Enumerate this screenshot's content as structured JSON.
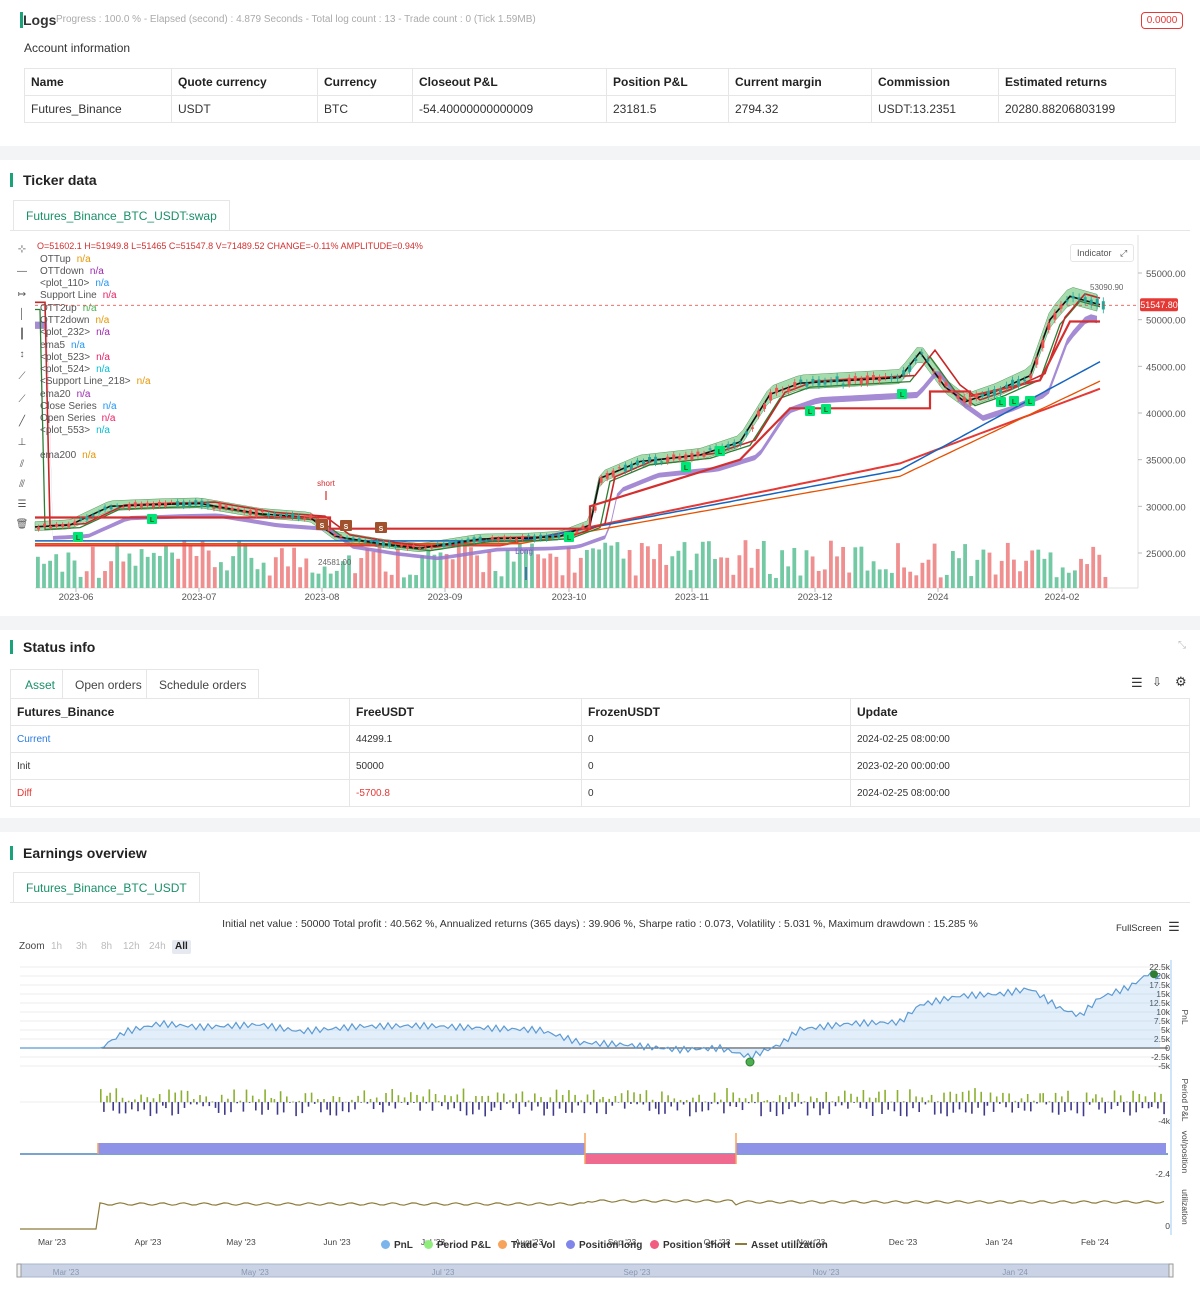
{
  "logs": {
    "title": "Logs",
    "status": "Progress : 100.0 % - Elapsed (second) : 4.879  Seconds - Total log count : 13 - Trade count : 0 (Tick 1.59MB)",
    "badge": "0.0000"
  },
  "account": {
    "title": "Account information",
    "headers": [
      "Name",
      "Quote currency",
      "Currency",
      "Closeout P&L",
      "Position P&L",
      "Current margin",
      "Commission",
      "Estimated returns"
    ],
    "row": [
      "Futures_Binance",
      "USDT",
      "BTC",
      "-54.40000000000009",
      "23181.5",
      "2794.32",
      "USDT:13.2351",
      "20280.88206803199"
    ]
  },
  "ticker": {
    "title": "Ticker data",
    "tab": "Futures_Binance_BTC_USDT:swap",
    "ohlc": "O=51602.1 H=51949.8 L=51465 C=51547.8 V=71489.52 CHANGE=-0.11% AMPLITUDE=0.94%",
    "indicator_btn": "Indicator",
    "legend": [
      {
        "name": "OTTup",
        "val": "n/a",
        "color": "#e69500"
      },
      {
        "name": "OTTdown",
        "val": "n/a",
        "color": "#9c27b0"
      },
      {
        "name": "<plot_110>",
        "val": "n/a",
        "color": "#2196f3"
      },
      {
        "name": "Support Line",
        "val": "n/a",
        "color": "#e91e63"
      },
      {
        "name": "OTT2up",
        "val": "n/a",
        "color": "#4caf50"
      },
      {
        "name": "OTT2down",
        "val": "n/a",
        "color": "#e69500"
      },
      {
        "name": "<plot_232>",
        "val": "n/a",
        "color": "#9c27b0"
      },
      {
        "name": "ema5",
        "val": "n/a",
        "color": "#2196f3"
      },
      {
        "name": "<plot_523>",
        "val": "n/a",
        "color": "#e91e63"
      },
      {
        "name": "<plot_524>",
        "val": "n/a",
        "color": "#00bcd4"
      },
      {
        "name": "<Support Line_218>",
        "val": "n/a",
        "color": "#e69500"
      },
      {
        "name": "ema20",
        "val": "n/a",
        "color": "#9c27b0"
      },
      {
        "name": "Close Series",
        "val": "n/a",
        "color": "#2196f3"
      },
      {
        "name": "Open Series",
        "val": "n/a",
        "color": "#e91e63"
      },
      {
        "name": "<plot_553>",
        "val": "n/a",
        "color": "#00bcd4"
      },
      {
        "name": "ema200",
        "val": "n/a",
        "color": "#e69500"
      }
    ],
    "price_ticks": [
      "55000.00",
      "50000.00",
      "45000.00",
      "40000.00",
      "35000.00",
      "30000.00",
      "25000.00"
    ],
    "date_ticks": [
      "2023-06",
      "2023-07",
      "2023-08",
      "2023-09",
      "2023-10",
      "2023-11",
      "2023-12",
      "2024",
      "2024-02"
    ],
    "last_price": "51547.80",
    "high_label": "53090.90",
    "low_label": "24581.00",
    "short_label": "short",
    "long_label": "Long"
  },
  "status": {
    "title": "Status info",
    "tabs": [
      "Asset",
      "Open orders",
      "Schedule orders"
    ],
    "headers": [
      "Futures_Binance",
      "FreeUSDT",
      "FrozenUSDT",
      "Update"
    ],
    "rows": [
      {
        "label": "Current",
        "free": "44299.1",
        "frozen": "0",
        "update": "2024-02-25 08:00:00"
      },
      {
        "label": "Init",
        "free": "50000",
        "frozen": "0",
        "update": "2023-02-20 00:00:00"
      },
      {
        "label": "Diff",
        "free": "-5700.8",
        "frozen": "0",
        "update": "2024-02-25 08:00:00"
      }
    ]
  },
  "earnings": {
    "title": "Earnings overview",
    "tab": "Futures_Binance_BTC_USDT",
    "summary": "Initial net value : 50000 Total profit : 40.562 %, Annualized returns (365 days) : 39.906 %, Sharpe ratio : 0.073, Volatility : 5.031 %, Maximum drawdown : 15.285 %",
    "fullscreen": "FullScreen",
    "zoom_label": "Zoom",
    "zoom_buttons": [
      "1h",
      "3h",
      "8h",
      "12h",
      "24h",
      "All"
    ],
    "pnl_ticks": [
      "22.5k",
      "20k",
      "17.5k",
      "15k",
      "12.5k",
      "10k",
      "7.5k",
      "5k",
      "2.5k",
      "0",
      "-2.5k",
      "-5k"
    ],
    "period_tick": "-4k",
    "pos_tick": "-2.4",
    "util_tick": "0",
    "axis_titles": [
      "PnL",
      "Period P&L",
      "vol/position",
      "utilization"
    ],
    "months": [
      "Mar '23",
      "Apr '23",
      "May '23",
      "Jun '23",
      "Jul '23",
      "Aug '23",
      "Sep '23",
      "Oct '23",
      "Nov '23",
      "Dec '23",
      "Jan '24",
      "Feb '24"
    ],
    "nav_months": [
      "Mar '23",
      "May '23",
      "Jul '23",
      "Sep '23",
      "Nov '23",
      "Jan '24"
    ],
    "legend": [
      {
        "name": "PnL",
        "color": "#7cb5ec"
      },
      {
        "name": "Period P&L",
        "color": "#90ed7d"
      },
      {
        "name": "Trade Vol",
        "color": "#f7a35c"
      },
      {
        "name": "Position long",
        "color": "#8085e9"
      },
      {
        "name": "Position short",
        "color": "#f15c80"
      },
      {
        "name": "Asset utilization",
        "color": "#8d7b3a"
      }
    ]
  }
}
